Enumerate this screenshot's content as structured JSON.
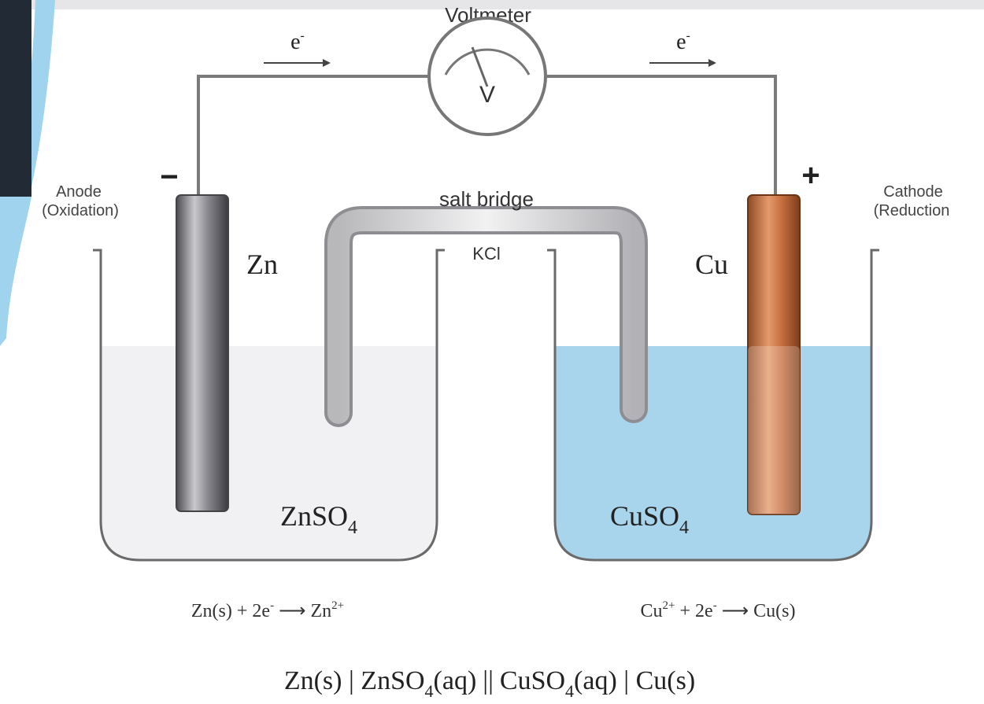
{
  "colors": {
    "frame_dark": "#222a36",
    "swoosh": "#9fd3ee",
    "top_bar": "#e6e6e8",
    "solution_cu": "#a8d4ec",
    "solution_zn": "#f1f1f3",
    "copper": "#c0683a",
    "zinc": "#6d6d72",
    "wire": "#7a7a7a",
    "salt_bridge": "#d6d6d6"
  },
  "diagram": {
    "voltmeter": {
      "title": "Voltmeter",
      "symbol": "V"
    },
    "electron_flow": {
      "label": "e",
      "sup": "-"
    },
    "anode": {
      "sign": "−",
      "label_line1": "Anode",
      "label_line2": "(Oxidation)",
      "electrode": "Zn"
    },
    "cathode": {
      "sign": "+",
      "label_line1": "Cathode",
      "label_line2": "(Reduction",
      "electrode": "Cu"
    },
    "salt_bridge": {
      "label": "salt bridge",
      "electrolyte": "KCl"
    },
    "left_solution": {
      "base": "ZnSO",
      "sub": "4"
    },
    "right_solution": {
      "base": "CuSO",
      "sub": "4"
    },
    "left_reaction": {
      "a": "Zn(s) + 2e",
      "a_sup": "-",
      "arrow": "⟶",
      "b": "Zn",
      "b_sup": "2+"
    },
    "right_reaction": {
      "a": "Cu",
      "a_sup": "2+",
      "b": " + 2e",
      "b_sup": "-",
      "arrow": "⟶",
      "c": "Cu(s)"
    },
    "cell_notation": {
      "p1": "Zn(s) | ZnSO",
      "s1": "4",
      "p2": "(aq)",
      "sep": "||",
      "p3": "CuSO",
      "s2": "4",
      "p4": "(aq) | Cu(s)"
    }
  }
}
